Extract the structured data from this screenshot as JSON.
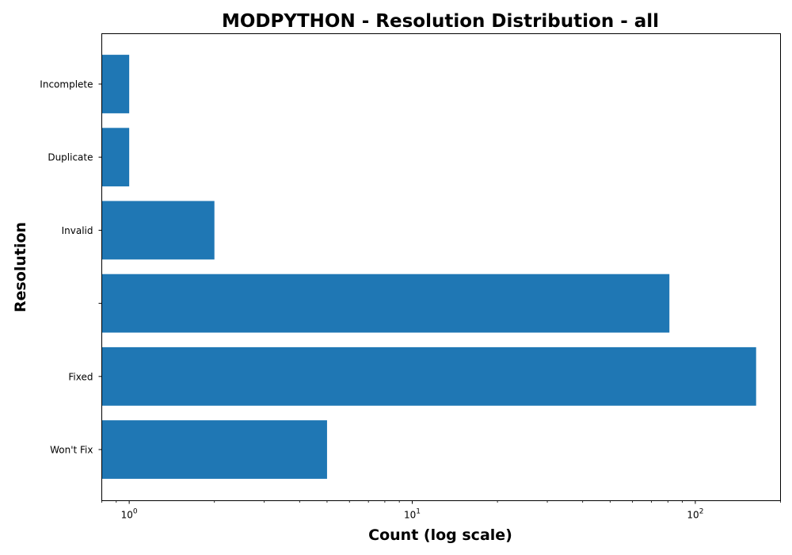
{
  "chart_data": {
    "type": "bar",
    "orientation": "horizontal",
    "title": "MODPYTHON - Resolution Distribution - all",
    "xlabel": "Count (log scale)",
    "ylabel": "Resolution",
    "x_scale": "log",
    "xlim": [
      0.8,
      200
    ],
    "x_ticks": [
      {
        "value": 1,
        "base": "10",
        "exp": "0"
      },
      {
        "value": 10,
        "base": "10",
        "exp": "1"
      },
      {
        "value": 100,
        "base": "10",
        "exp": "2"
      }
    ],
    "categories": [
      "Incomplete",
      "Duplicate",
      "Invalid",
      "",
      "Fixed",
      "Won't Fix"
    ],
    "values": [
      1,
      1,
      2,
      81,
      164,
      5
    ],
    "bar_color": "#1f77b4",
    "grid": false,
    "legend": "none"
  }
}
